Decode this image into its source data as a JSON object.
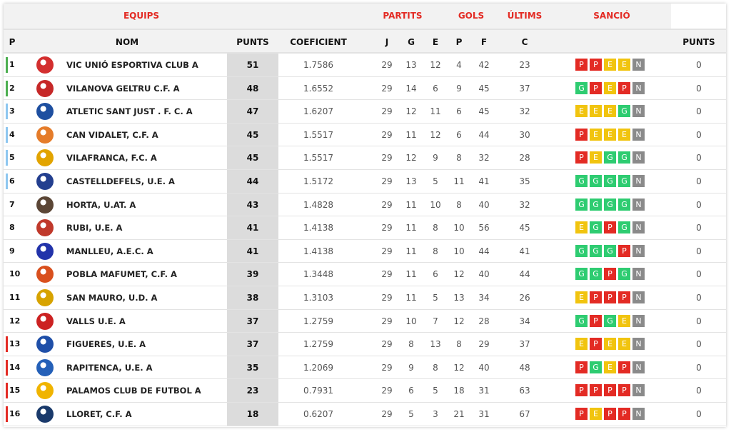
{
  "header": {
    "groups": {
      "equips": "EQUIPS",
      "partits": "PARTITS",
      "gols": "GOLS",
      "ultims": "ÚLTIMS",
      "sancio": "SANCIÓ"
    },
    "columns": {
      "p": "P",
      "nom": "NOM",
      "punts": "PUNTS",
      "coeficient": "COEFICIENT",
      "j": "J",
      "g": "G",
      "e": "E",
      "pp": "P",
      "f": "F",
      "c": "C",
      "sancio_punts": "PUNTS"
    }
  },
  "colors": {
    "accent": "#e32b24",
    "G": "#2ecc71",
    "E": "#f1c40f",
    "P": "#e32b24",
    "N": "#8a8a8a",
    "zone_promo": "#4caf50",
    "zone_playoff": "#8ec7f0",
    "zone_releg": "#e32b24"
  },
  "rows": [
    {
      "pos": "1",
      "name": "VIC UNIÓ ESPORTIVA CLUB A",
      "punts": "51",
      "coef": "1.7586",
      "j": "29",
      "g": "13",
      "e": "12",
      "p": "4",
      "f": "42",
      "c": "23",
      "last": [
        "P",
        "P",
        "E",
        "E",
        "N"
      ],
      "sancio": "0",
      "zone": "zone_promo"
    },
    {
      "pos": "2",
      "name": "VILANOVA GELTRU C.F. A",
      "punts": "48",
      "coef": "1.6552",
      "j": "29",
      "g": "14",
      "e": "6",
      "p": "9",
      "f": "45",
      "c": "37",
      "last": [
        "G",
        "P",
        "E",
        "P",
        "N"
      ],
      "sancio": "0",
      "zone": "zone_promo"
    },
    {
      "pos": "3",
      "name": "ATLETIC SANT JUST . F. C. A",
      "punts": "47",
      "coef": "1.6207",
      "j": "29",
      "g": "12",
      "e": "11",
      "p": "6",
      "f": "45",
      "c": "32",
      "last": [
        "E",
        "E",
        "E",
        "G",
        "N"
      ],
      "sancio": "0",
      "zone": "zone_playoff"
    },
    {
      "pos": "4",
      "name": "CAN VIDALET, C.F. A",
      "punts": "45",
      "coef": "1.5517",
      "j": "29",
      "g": "11",
      "e": "12",
      "p": "6",
      "f": "44",
      "c": "30",
      "last": [
        "P",
        "E",
        "E",
        "E",
        "N"
      ],
      "sancio": "0",
      "zone": "zone_playoff"
    },
    {
      "pos": "5",
      "name": "VILAFRANCA, F.C. A",
      "punts": "45",
      "coef": "1.5517",
      "j": "29",
      "g": "12",
      "e": "9",
      "p": "8",
      "f": "32",
      "c": "28",
      "last": [
        "P",
        "E",
        "G",
        "G",
        "N"
      ],
      "sancio": "0",
      "zone": "zone_playoff"
    },
    {
      "pos": "6",
      "name": "CASTELLDEFELS, U.E. A",
      "punts": "44",
      "coef": "1.5172",
      "j": "29",
      "g": "13",
      "e": "5",
      "p": "11",
      "f": "41",
      "c": "35",
      "last": [
        "G",
        "G",
        "G",
        "G",
        "N"
      ],
      "sancio": "0",
      "zone": "zone_playoff"
    },
    {
      "pos": "7",
      "name": "HORTA, U.AT. A",
      "punts": "43",
      "coef": "1.4828",
      "j": "29",
      "g": "11",
      "e": "10",
      "p": "8",
      "f": "40",
      "c": "32",
      "last": [
        "G",
        "G",
        "G",
        "G",
        "N"
      ],
      "sancio": "0",
      "zone": ""
    },
    {
      "pos": "8",
      "name": "RUBI, U.E. A",
      "punts": "41",
      "coef": "1.4138",
      "j": "29",
      "g": "11",
      "e": "8",
      "p": "10",
      "f": "56",
      "c": "45",
      "last": [
        "E",
        "G",
        "P",
        "G",
        "N"
      ],
      "sancio": "0",
      "zone": ""
    },
    {
      "pos": "9",
      "name": "MANLLEU, A.E.C. A",
      "punts": "41",
      "coef": "1.4138",
      "j": "29",
      "g": "11",
      "e": "8",
      "p": "10",
      "f": "44",
      "c": "41",
      "last": [
        "G",
        "G",
        "G",
        "P",
        "N"
      ],
      "sancio": "0",
      "zone": ""
    },
    {
      "pos": "10",
      "name": "POBLA MAFUMET, C.F. A",
      "punts": "39",
      "coef": "1.3448",
      "j": "29",
      "g": "11",
      "e": "6",
      "p": "12",
      "f": "40",
      "c": "44",
      "last": [
        "G",
        "G",
        "P",
        "G",
        "N"
      ],
      "sancio": "0",
      "zone": ""
    },
    {
      "pos": "11",
      "name": "SAN MAURO, U.D. A",
      "punts": "38",
      "coef": "1.3103",
      "j": "29",
      "g": "11",
      "e": "5",
      "p": "13",
      "f": "34",
      "c": "26",
      "last": [
        "E",
        "P",
        "P",
        "P",
        "N"
      ],
      "sancio": "0",
      "zone": ""
    },
    {
      "pos": "12",
      "name": "VALLS U.E. A",
      "punts": "37",
      "coef": "1.2759",
      "j": "29",
      "g": "10",
      "e": "7",
      "p": "12",
      "f": "28",
      "c": "34",
      "last": [
        "G",
        "P",
        "G",
        "E",
        "N"
      ],
      "sancio": "0",
      "zone": ""
    },
    {
      "pos": "13",
      "name": "FIGUERES, U.E. A",
      "punts": "37",
      "coef": "1.2759",
      "j": "29",
      "g": "8",
      "e": "13",
      "p": "8",
      "f": "29",
      "c": "37",
      "last": [
        "E",
        "P",
        "E",
        "E",
        "N"
      ],
      "sancio": "0",
      "zone": "zone_releg"
    },
    {
      "pos": "14",
      "name": "RAPITENCA, U.E. A",
      "punts": "35",
      "coef": "1.2069",
      "j": "29",
      "g": "9",
      "e": "8",
      "p": "12",
      "f": "40",
      "c": "48",
      "last": [
        "P",
        "G",
        "E",
        "P",
        "N"
      ],
      "sancio": "0",
      "zone": "zone_releg"
    },
    {
      "pos": "15",
      "name": "PALAMOS CLUB DE FUTBOL A",
      "punts": "23",
      "coef": "0.7931",
      "j": "29",
      "g": "6",
      "e": "5",
      "p": "18",
      "f": "31",
      "c": "63",
      "last": [
        "P",
        "P",
        "P",
        "P",
        "N"
      ],
      "sancio": "0",
      "zone": "zone_releg"
    },
    {
      "pos": "16",
      "name": "LLORET, C.F. A",
      "punts": "18",
      "coef": "0.6207",
      "j": "29",
      "g": "5",
      "e": "3",
      "p": "21",
      "f": "31",
      "c": "67",
      "last": [
        "P",
        "E",
        "P",
        "P",
        "N"
      ],
      "sancio": "0",
      "zone": "zone_releg"
    }
  ]
}
